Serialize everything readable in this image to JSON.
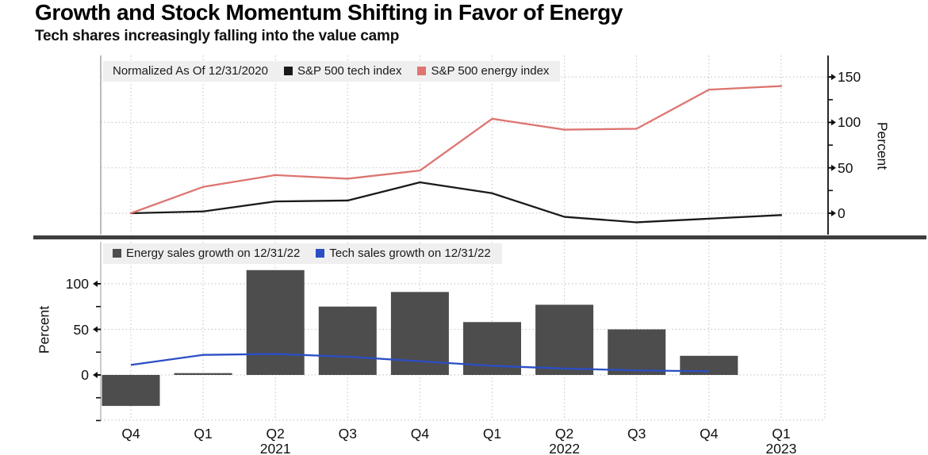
{
  "header": {
    "title": "Growth and Stock Momentum Shifting in Favor of Energy",
    "subtitle": "Tech shares increasingly falling into the value camp"
  },
  "colors": {
    "tech_index_line": "#1a1a1a",
    "energy_index_line": "#dd7571",
    "energy_bar": "#4d4d4d",
    "tech_sales_line": "#2b4ec5",
    "legend_background": "#efefef",
    "gridline": "#cbcbcb",
    "axis": "#111111",
    "separator": "#3e3e3e"
  },
  "x_axis": {
    "quarters": [
      "Q4",
      "Q1",
      "Q2",
      "Q3",
      "Q4",
      "Q1",
      "Q2",
      "Q3",
      "Q4",
      "Q1"
    ],
    "years": [
      {
        "label": "2021",
        "index": 2
      },
      {
        "label": "2022",
        "index": 6
      },
      {
        "label": "2023",
        "index": 9
      }
    ]
  },
  "chart_data": [
    {
      "type": "line",
      "panel": "top",
      "note": "Normalized As Of 12/31/2020",
      "categories": [
        "Q4 2020",
        "Q1 2021",
        "Q2 2021",
        "Q3 2021",
        "Q4 2021",
        "Q1 2022",
        "Q2 2022",
        "Q3 2022",
        "Q4 2022",
        "Q1 2023"
      ],
      "series": [
        {
          "name": "S&P 500 tech index",
          "color": "#1a1a1a",
          "values": [
            0,
            2,
            13,
            14,
            34,
            22,
            -4,
            -10,
            -6,
            -2
          ]
        },
        {
          "name": "S&P 500 energy index",
          "color": "#dd7571",
          "values": [
            0,
            29,
            42,
            38,
            47,
            104,
            92,
            93,
            136,
            140
          ]
        }
      ],
      "ylabel": "Percent",
      "yticks": [
        0,
        50,
        100,
        150
      ],
      "yticks_minor": [
        25,
        75,
        125
      ],
      "ylim": [
        -25,
        175
      ],
      "grid": true,
      "legend_position": "top-left-inside",
      "y_axis_side": "right"
    },
    {
      "type": "bar",
      "panel": "bottom",
      "categories": [
        "Q4 2020",
        "Q1 2021",
        "Q2 2021",
        "Q3 2021",
        "Q4 2021",
        "Q1 2022",
        "Q2 2022",
        "Q3 2022",
        "Q4 2022",
        "Q1 2023"
      ],
      "series": [
        {
          "name": "Energy sales growth on 12/31/22",
          "type": "bar",
          "color": "#4d4d4d",
          "values": [
            -34,
            2,
            115,
            75,
            91,
            58,
            77,
            50,
            21,
            null
          ]
        },
        {
          "name": "Tech sales growth on 12/31/22",
          "type": "line",
          "color": "#2b4ec5",
          "values": [
            11,
            22,
            23,
            20,
            15,
            10,
            7,
            5,
            4,
            null
          ]
        }
      ],
      "ylabel": "Percent",
      "yticks": [
        0,
        50,
        100
      ],
      "yticks_minor": [
        -50,
        -25,
        25,
        75
      ],
      "ylim": [
        -55,
        130
      ],
      "grid": true,
      "legend_position": "top-left-inside",
      "y_axis_side": "left"
    }
  ]
}
